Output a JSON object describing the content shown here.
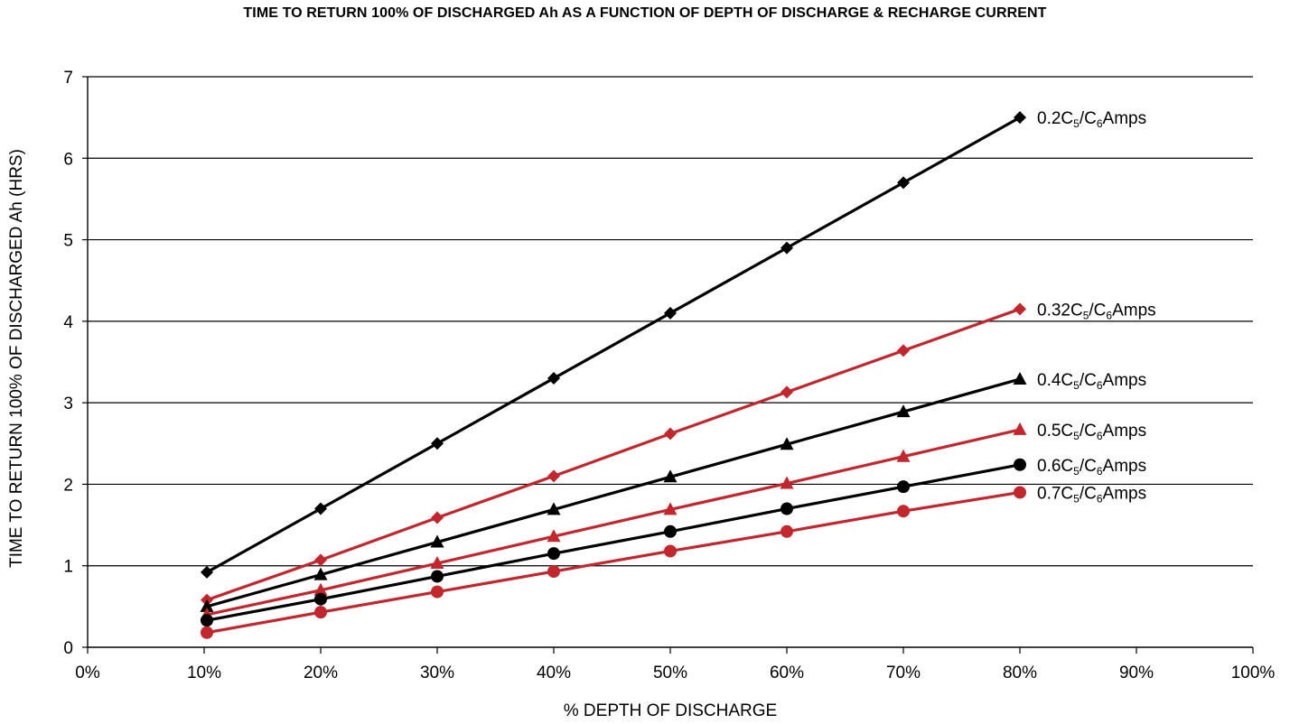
{
  "chart_data": {
    "type": "line",
    "title": "TIME TO RETURN 100% OF DISCHARGED Ah AS A FUNCTION OF DEPTH OF DISCHARGE & RECHARGE CURRENT",
    "xlabel": "% DEPTH OF DISCHARGE",
    "ylabel": "TIME TO RETURN 100% OF DISCHARGED Ah (HRS)",
    "xlim": [
      0,
      100
    ],
    "ylim": [
      0,
      7
    ],
    "x_ticks": [
      "0%",
      "10%",
      "20%",
      "30%",
      "40%",
      "50%",
      "60%",
      "70%",
      "80%",
      "90%",
      "100%"
    ],
    "y_ticks": [
      "0",
      "1",
      "2",
      "3",
      "4",
      "5",
      "6",
      "7"
    ],
    "grid": "horizontal",
    "legend": "inline-right",
    "x": [
      10,
      20,
      30,
      40,
      50,
      60,
      70,
      80
    ],
    "series": [
      {
        "name": "0.2C5/C6Amps",
        "label_base": "0.2C",
        "sub1": "5",
        "sub2": "6",
        "label_tail": "Amps",
        "color": "#000000",
        "marker": "diamond",
        "values": [
          0.92,
          1.7,
          2.5,
          3.3,
          4.1,
          4.9,
          5.7,
          6.5
        ]
      },
      {
        "name": "0.32C5/C6Amps",
        "label_base": "0.32C",
        "sub1": "5",
        "sub2": "6",
        "label_tail": "Amps",
        "color": "#c1272d",
        "marker": "diamond",
        "values": [
          0.58,
          1.07,
          1.59,
          2.1,
          2.62,
          3.13,
          3.64,
          4.15
        ]
      },
      {
        "name": "0.4C5/C6Amps",
        "label_base": "0.4C",
        "sub1": "5",
        "sub2": "6",
        "label_tail": "Amps",
        "color": "#000000",
        "marker": "triangle",
        "values": [
          0.5,
          0.89,
          1.29,
          1.69,
          2.09,
          2.49,
          2.89,
          3.29
        ]
      },
      {
        "name": "0.5C5/C6Amps",
        "label_base": "0.5C",
        "sub1": "5",
        "sub2": "6",
        "label_tail": "Amps",
        "color": "#c1272d",
        "marker": "triangle",
        "values": [
          0.4,
          0.7,
          1.03,
          1.36,
          1.69,
          2.01,
          2.34,
          2.67
        ]
      },
      {
        "name": "0.6C5/C6Amps",
        "label_base": "0.6C",
        "sub1": "5",
        "sub2": "6",
        "label_tail": "Amps",
        "color": "#000000",
        "marker": "circle",
        "values": [
          0.33,
          0.59,
          0.87,
          1.15,
          1.42,
          1.7,
          1.97,
          2.24
        ]
      },
      {
        "name": "0.7C5/C6Amps",
        "label_base": "0.7C",
        "sub1": "5",
        "sub2": "6",
        "label_tail": "Amps",
        "color": "#c1272d",
        "marker": "circle",
        "values": [
          0.18,
          0.43,
          0.68,
          0.93,
          1.18,
          1.42,
          1.67,
          1.9
        ]
      }
    ]
  }
}
